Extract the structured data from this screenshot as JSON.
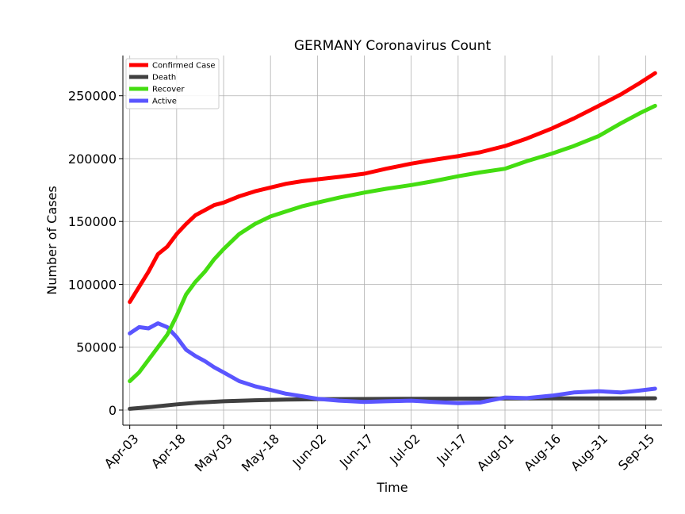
{
  "chart_data": {
    "type": "line",
    "title": "GERMANY Coronavirus Count",
    "xlabel": "Time",
    "ylabel": "Number of Cases",
    "x_start": "2020-04-03",
    "x_end": "2020-09-18",
    "ylim": [
      -12000,
      282000
    ],
    "yticks": [
      0,
      50000,
      100000,
      150000,
      200000,
      250000
    ],
    "xticks": [
      "Apr-03",
      "Apr-18",
      "May-03",
      "May-18",
      "Jun-02",
      "Jun-17",
      "Jul-02",
      "Jul-17",
      "Aug-01",
      "Aug-16",
      "Aug-31",
      "Sep-15"
    ],
    "grid": true,
    "legend_position": "top-left",
    "series": [
      {
        "name": "Confirmed Case",
        "color": "#ff0000",
        "points": [
          [
            "2020-04-03",
            86000
          ],
          [
            "2020-04-06",
            98000
          ],
          [
            "2020-04-09",
            110000
          ],
          [
            "2020-04-12",
            124000
          ],
          [
            "2020-04-15",
            130000
          ],
          [
            "2020-04-18",
            140000
          ],
          [
            "2020-04-21",
            148000
          ],
          [
            "2020-04-24",
            155000
          ],
          [
            "2020-04-27",
            159000
          ],
          [
            "2020-04-30",
            163000
          ],
          [
            "2020-05-03",
            165000
          ],
          [
            "2020-05-08",
            170000
          ],
          [
            "2020-05-13",
            174000
          ],
          [
            "2020-05-18",
            177000
          ],
          [
            "2020-05-23",
            180000
          ],
          [
            "2020-05-28",
            182000
          ],
          [
            "2020-06-02",
            183500
          ],
          [
            "2020-06-09",
            185500
          ],
          [
            "2020-06-17",
            188000
          ],
          [
            "2020-06-24",
            192000
          ],
          [
            "2020-07-02",
            196000
          ],
          [
            "2020-07-09",
            199000
          ],
          [
            "2020-07-17",
            202000
          ],
          [
            "2020-07-24",
            205000
          ],
          [
            "2020-08-01",
            210000
          ],
          [
            "2020-08-08",
            216000
          ],
          [
            "2020-08-16",
            224000
          ],
          [
            "2020-08-23",
            232000
          ],
          [
            "2020-08-31",
            242000
          ],
          [
            "2020-09-07",
            251000
          ],
          [
            "2020-09-13",
            260000
          ],
          [
            "2020-09-18",
            268000
          ]
        ]
      },
      {
        "name": "Death",
        "color": "#404040",
        "points": [
          [
            "2020-04-03",
            1000
          ],
          [
            "2020-04-10",
            2500
          ],
          [
            "2020-04-18",
            4500
          ],
          [
            "2020-04-25",
            6000
          ],
          [
            "2020-05-03",
            7000
          ],
          [
            "2020-05-13",
            7800
          ],
          [
            "2020-05-23",
            8300
          ],
          [
            "2020-06-02",
            8600
          ],
          [
            "2020-06-17",
            8800
          ],
          [
            "2020-07-02",
            9000
          ],
          [
            "2020-07-17",
            9100
          ],
          [
            "2020-08-01",
            9200
          ],
          [
            "2020-08-16",
            9300
          ],
          [
            "2020-08-31",
            9350
          ],
          [
            "2020-09-18",
            9400
          ]
        ]
      },
      {
        "name": "Recover",
        "color": "#44dd11",
        "points": [
          [
            "2020-04-03",
            23000
          ],
          [
            "2020-04-06",
            30000
          ],
          [
            "2020-04-09",
            40000
          ],
          [
            "2020-04-12",
            50000
          ],
          [
            "2020-04-15",
            60000
          ],
          [
            "2020-04-18",
            75000
          ],
          [
            "2020-04-21",
            92000
          ],
          [
            "2020-04-24",
            102000
          ],
          [
            "2020-04-27",
            110000
          ],
          [
            "2020-04-30",
            120000
          ],
          [
            "2020-05-03",
            128000
          ],
          [
            "2020-05-08",
            140000
          ],
          [
            "2020-05-13",
            148000
          ],
          [
            "2020-05-18",
            154000
          ],
          [
            "2020-05-23",
            158000
          ],
          [
            "2020-05-28",
            162000
          ],
          [
            "2020-06-02",
            165000
          ],
          [
            "2020-06-09",
            169000
          ],
          [
            "2020-06-17",
            173000
          ],
          [
            "2020-06-24",
            176000
          ],
          [
            "2020-07-02",
            179000
          ],
          [
            "2020-07-09",
            182000
          ],
          [
            "2020-07-17",
            186000
          ],
          [
            "2020-07-24",
            189000
          ],
          [
            "2020-08-01",
            192000
          ],
          [
            "2020-08-08",
            198000
          ],
          [
            "2020-08-16",
            204000
          ],
          [
            "2020-08-23",
            210000
          ],
          [
            "2020-08-31",
            218000
          ],
          [
            "2020-09-07",
            228000
          ],
          [
            "2020-09-13",
            236000
          ],
          [
            "2020-09-18",
            242000
          ]
        ]
      },
      {
        "name": "Active",
        "color": "#5a55ff",
        "points": [
          [
            "2020-04-03",
            61000
          ],
          [
            "2020-04-06",
            66000
          ],
          [
            "2020-04-09",
            65000
          ],
          [
            "2020-04-12",
            69000
          ],
          [
            "2020-04-15",
            66000
          ],
          [
            "2020-04-18",
            58000
          ],
          [
            "2020-04-21",
            48000
          ],
          [
            "2020-04-24",
            43000
          ],
          [
            "2020-04-27",
            39000
          ],
          [
            "2020-04-30",
            34000
          ],
          [
            "2020-05-03",
            30000
          ],
          [
            "2020-05-08",
            23000
          ],
          [
            "2020-05-13",
            19000
          ],
          [
            "2020-05-18",
            16000
          ],
          [
            "2020-05-23",
            13000
          ],
          [
            "2020-05-28",
            11000
          ],
          [
            "2020-06-02",
            9000
          ],
          [
            "2020-06-09",
            7500
          ],
          [
            "2020-06-17",
            6500
          ],
          [
            "2020-06-24",
            7000
          ],
          [
            "2020-07-02",
            7500
          ],
          [
            "2020-07-09",
            6500
          ],
          [
            "2020-07-17",
            5500
          ],
          [
            "2020-07-24",
            6000
          ],
          [
            "2020-08-01",
            10000
          ],
          [
            "2020-08-08",
            9500
          ],
          [
            "2020-08-16",
            11500
          ],
          [
            "2020-08-23",
            14000
          ],
          [
            "2020-08-31",
            15000
          ],
          [
            "2020-09-07",
            14000
          ],
          [
            "2020-09-13",
            15500
          ],
          [
            "2020-09-18",
            17000
          ]
        ]
      }
    ]
  }
}
